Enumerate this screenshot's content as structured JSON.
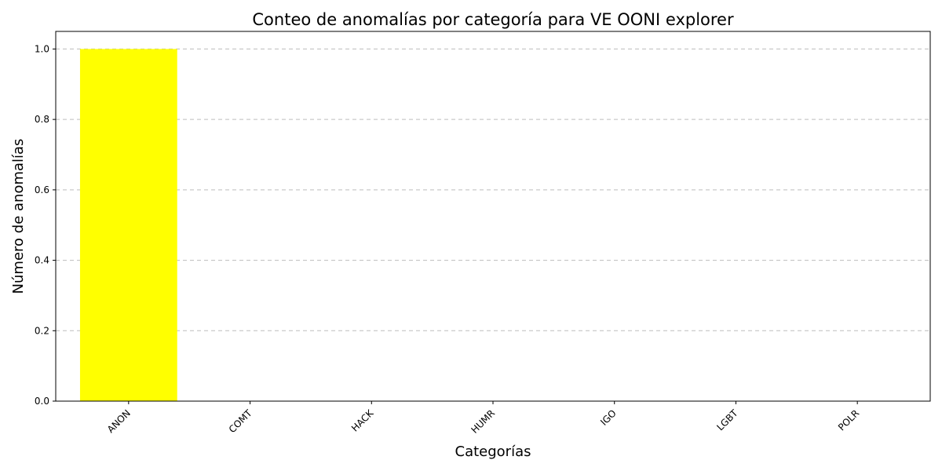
{
  "chart_data": {
    "type": "bar",
    "title": "Conteo de anomalías por categoría para VE OONI explorer",
    "xlabel": "Categorías",
    "ylabel": "Número de anomalías",
    "categories": [
      "ANON",
      "COMT",
      "HACK",
      "HUMR",
      "IGO",
      "LGBT",
      "POLR"
    ],
    "values": [
      1,
      0,
      0,
      0,
      0,
      0,
      0
    ],
    "ylim": [
      0,
      1.05
    ],
    "yticks": [
      0.0,
      0.2,
      0.4,
      0.6,
      0.8,
      1.0
    ],
    "ytick_labels": [
      "0.0",
      "0.2",
      "0.4",
      "0.6",
      "0.8",
      "1.0"
    ],
    "bar_color": "#ffff00",
    "grid": "y-dashed",
    "legend": "none"
  }
}
